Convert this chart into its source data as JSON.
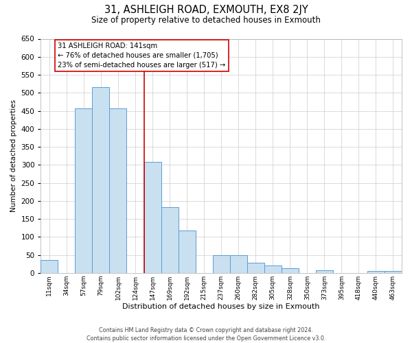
{
  "title": "31, ASHLEIGH ROAD, EXMOUTH, EX8 2JY",
  "subtitle": "Size of property relative to detached houses in Exmouth",
  "xlabel": "Distribution of detached houses by size in Exmouth",
  "ylabel": "Number of detached properties",
  "bar_labels": [
    "11sqm",
    "34sqm",
    "57sqm",
    "79sqm",
    "102sqm",
    "124sqm",
    "147sqm",
    "169sqm",
    "192sqm",
    "215sqm",
    "237sqm",
    "260sqm",
    "282sqm",
    "305sqm",
    "328sqm",
    "350sqm",
    "373sqm",
    "395sqm",
    "418sqm",
    "440sqm",
    "463sqm"
  ],
  "bar_values": [
    35,
    0,
    457,
    515,
    457,
    0,
    308,
    183,
    118,
    0,
    50,
    50,
    28,
    20,
    12,
    0,
    8,
    0,
    0,
    5,
    5
  ],
  "bar_color": "#c9e0f0",
  "bar_edge_color": "#5b9bd5",
  "bar_width": 1.0,
  "ylim": [
    0,
    650
  ],
  "yticks": [
    0,
    50,
    100,
    150,
    200,
    250,
    300,
    350,
    400,
    450,
    500,
    550,
    600,
    650
  ],
  "vline_x_idx": 5.5,
  "vline_color": "#cc0000",
  "annotation_title": "31 ASHLEIGH ROAD: 141sqm",
  "annotation_line1": "← 76% of detached houses are smaller (1,705)",
  "annotation_line2": "23% of semi-detached houses are larger (517) →",
  "annotation_box_color": "#ffffff",
  "annotation_box_edge": "#cc0000",
  "footer1": "Contains HM Land Registry data © Crown copyright and database right 2024.",
  "footer2": "Contains public sector information licensed under the Open Government Licence v3.0.",
  "background_color": "#ffffff",
  "grid_color": "#cccccc"
}
